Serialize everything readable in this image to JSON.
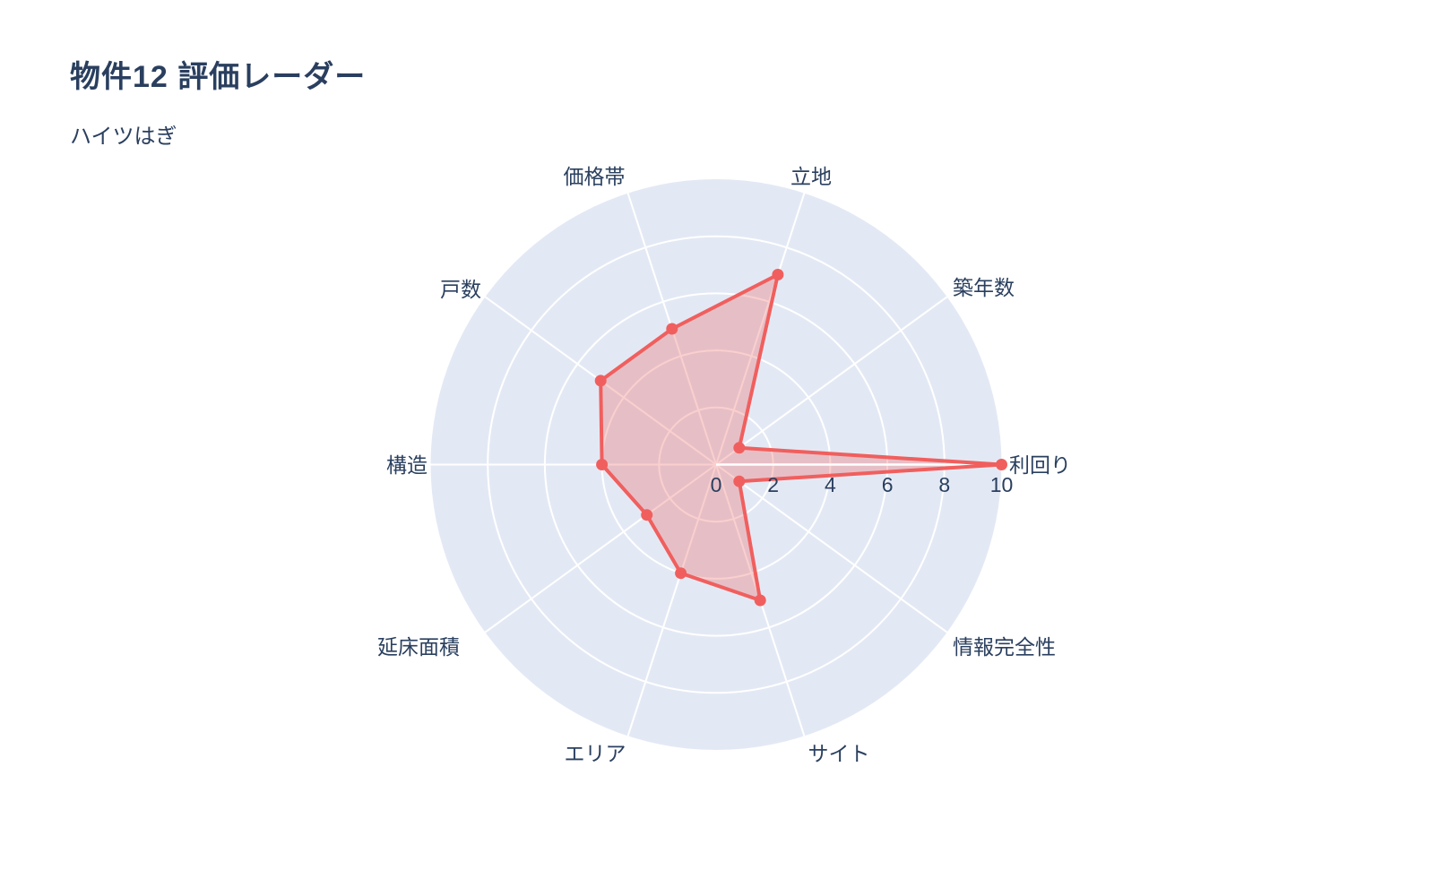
{
  "header": {
    "title": "物件12 評価レーダー",
    "subtitle": "ハイツはぎ"
  },
  "chart_data": {
    "type": "radar",
    "title": "物件12 評価レーダー",
    "subtitle": "ハイツはぎ",
    "categories": [
      "利回り",
      "築年数",
      "立地",
      "価格帯",
      "戸数",
      "構造",
      "延床面積",
      "エリア",
      "サイト",
      "情報完全性"
    ],
    "series": [
      {
        "name": "ハイツはぎ",
        "values": [
          10,
          1,
          7,
          5,
          5,
          4,
          3,
          4,
          5,
          1
        ]
      }
    ],
    "radial_ticks": [
      0,
      2,
      4,
      6,
      8,
      10
    ],
    "radial_range": [
      0,
      10
    ],
    "angle_start_deg": 0,
    "angle_step_deg": 36,
    "direction": "counterclockwise",
    "grid": "on",
    "legend": "none",
    "colors": {
      "line": "#f05f5e",
      "fill": "rgba(240, 95, 94, 0.30)",
      "disc_background": "#e3e9f4",
      "grid_line": "#ffffff",
      "text": "#2a3f5f"
    }
  }
}
